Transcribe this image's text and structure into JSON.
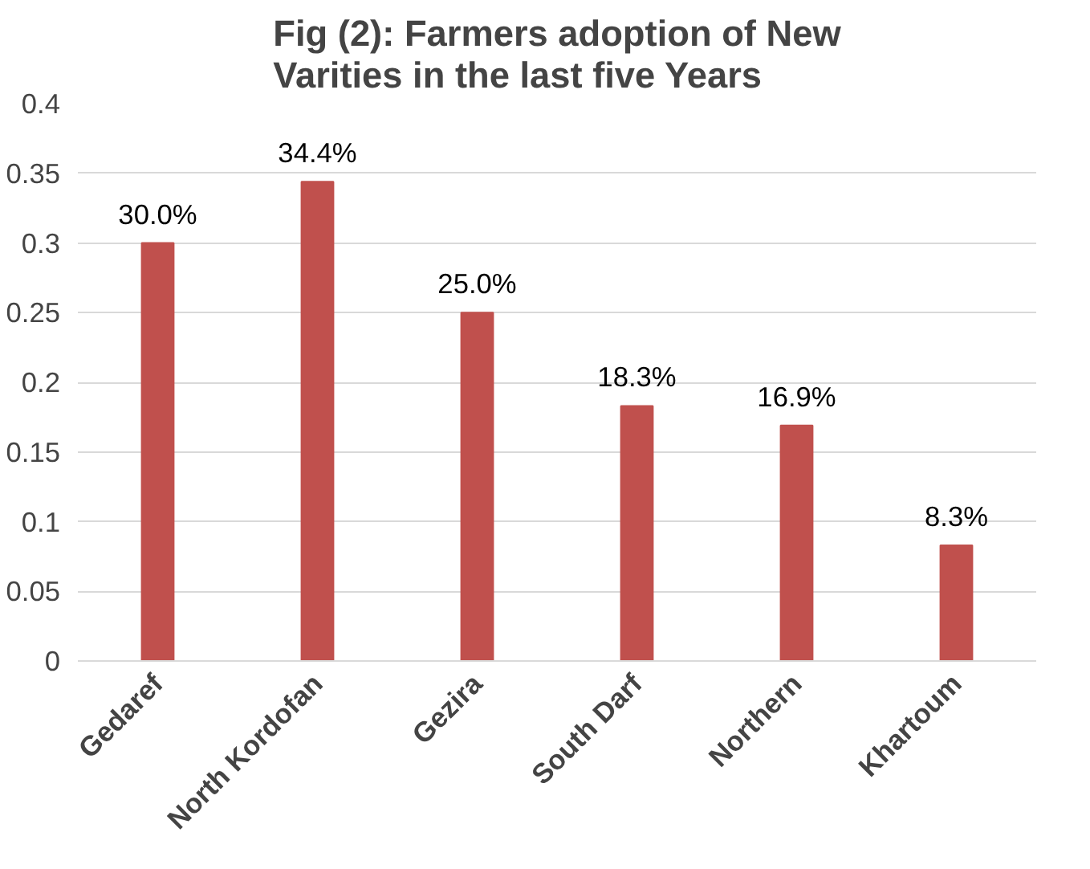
{
  "chart_data": {
    "type": "bar",
    "title": "Fig (2): Farmers adoption of New\nVarities  in the last five Years",
    "categories": [
      "Gedaref",
      "North Kordofan",
      "Gezira",
      "South Darf",
      "Northern",
      "Khartoum"
    ],
    "values": [
      0.3,
      0.344,
      0.25,
      0.183,
      0.169,
      0.083
    ],
    "value_labels": [
      "30.0%",
      "34.4%",
      "25.0%",
      "18.3%",
      "16.9%",
      "8.3%"
    ],
    "color": "#c0504d",
    "ylim": [
      0,
      0.4
    ],
    "yticks": [
      0,
      0.05,
      0.1,
      0.15,
      0.2,
      0.25,
      0.3,
      0.35,
      0.4
    ],
    "grid": "y"
  }
}
